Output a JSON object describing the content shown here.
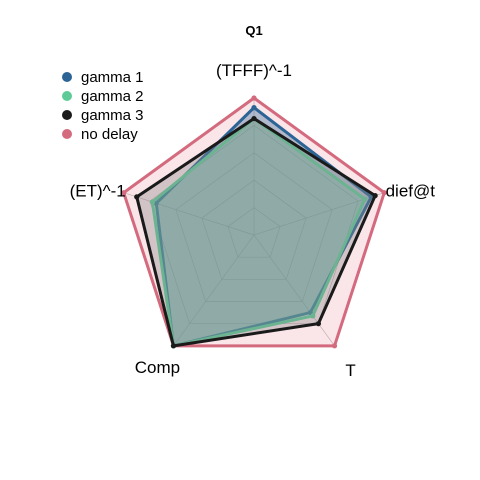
{
  "chart_data": {
    "type": "radar",
    "title": "Q1",
    "axes": [
      "(TFFF)^-1",
      "dief@t",
      "T",
      "Comp",
      "(ET)^-1"
    ],
    "range": [
      0,
      1
    ],
    "grid": true,
    "grid_levels": 5,
    "legend_position": "top-left",
    "series": [
      {
        "name": "gamma 1",
        "color": "#2c6496",
        "fill": "#2c6496",
        "values": [
          0.93,
          0.9,
          0.7,
          1.0,
          0.75
        ]
      },
      {
        "name": "gamma 2",
        "color": "#5ecb97",
        "fill": "#5ecb97",
        "values": [
          0.85,
          0.85,
          0.73,
          1.0,
          0.78
        ]
      },
      {
        "name": "gamma 3",
        "color": "#1a1a1a",
        "fill": "#888888",
        "values": [
          0.85,
          0.93,
          0.8,
          1.0,
          0.9
        ]
      },
      {
        "name": "no delay",
        "color": "#d46a7e",
        "fill": "#f3c6cf",
        "values": [
          1.0,
          1.0,
          1.0,
          1.0,
          1.0
        ]
      }
    ]
  }
}
